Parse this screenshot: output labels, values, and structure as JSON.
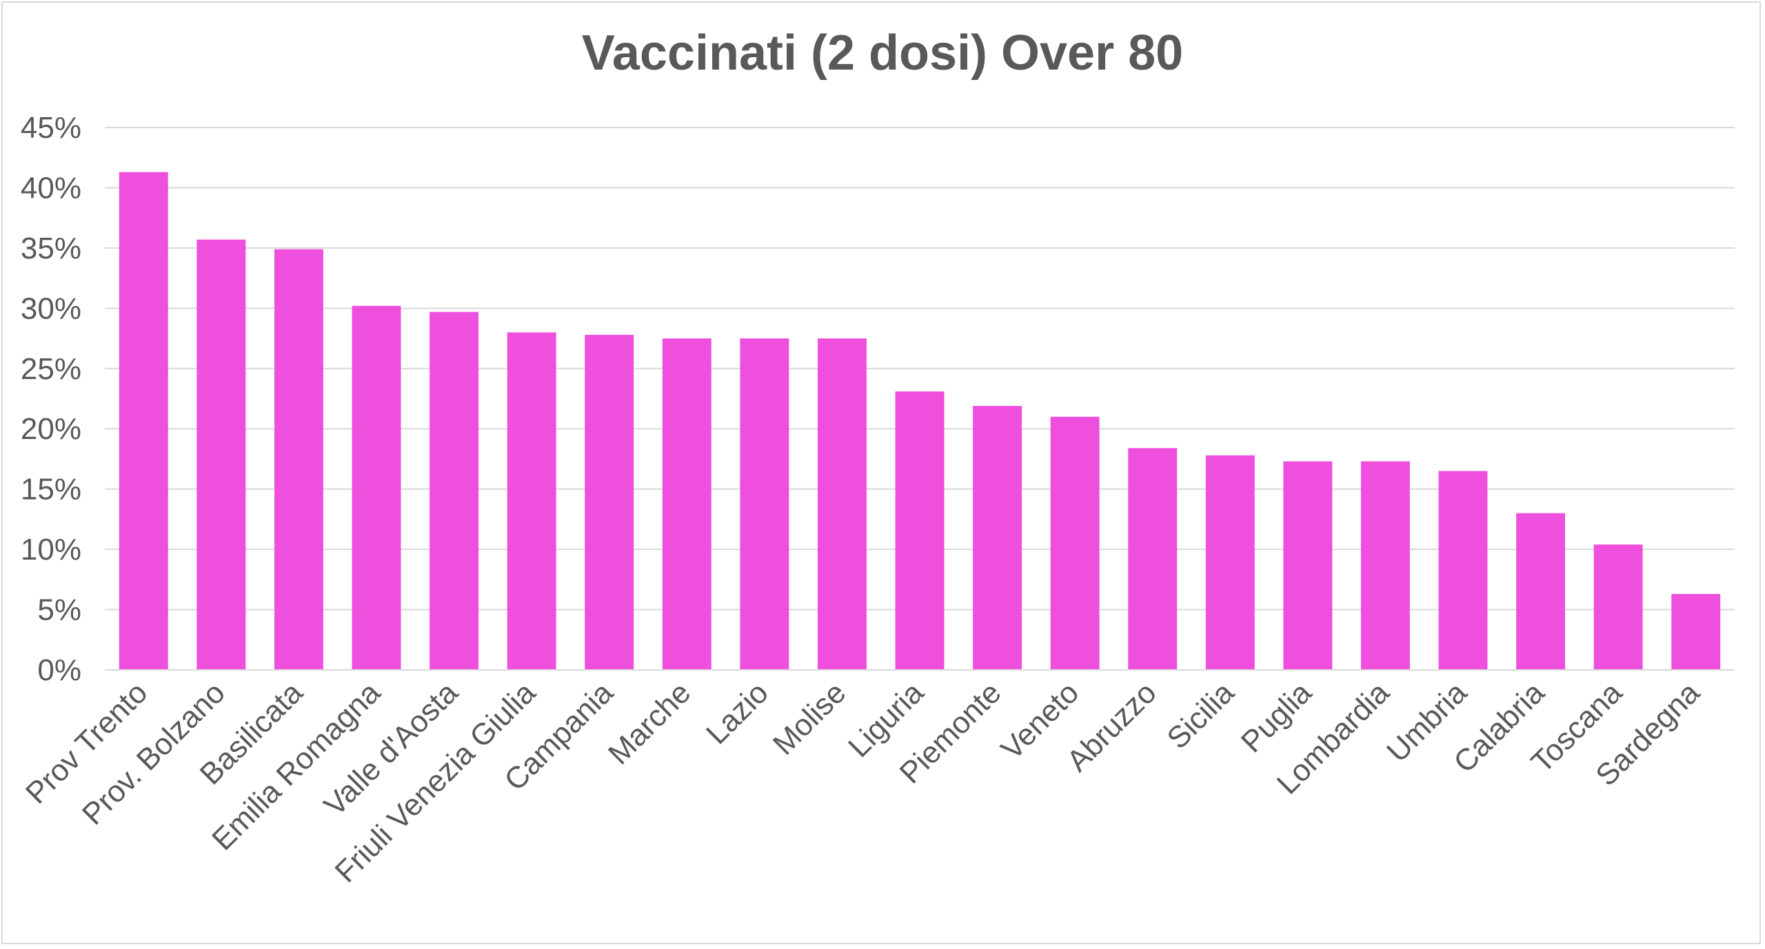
{
  "chart_data": {
    "type": "bar",
    "title": "Vaccinati (2 dosi) Over 80",
    "xlabel": "",
    "ylabel": "",
    "ylim": [
      0,
      0.45
    ],
    "yticks": [
      0,
      0.05,
      0.1,
      0.15,
      0.2,
      0.25,
      0.3,
      0.35,
      0.4,
      0.45
    ],
    "ytick_labels": [
      "0%",
      "5%",
      "10%",
      "15%",
      "20%",
      "25%",
      "30%",
      "35%",
      "40%",
      "45%"
    ],
    "grid": true,
    "legend": "none",
    "bar_color": "#ee4fdd",
    "grid_color": "#d9d9d9",
    "categories": [
      "Prov Trento",
      "Prov. Bolzano",
      "Basilicata",
      "Emilia Romagna",
      "Valle d'Aosta",
      "Friuli Venezia Giulia",
      "Campania",
      "Marche",
      "Lazio",
      "Molise",
      "Liguria",
      "Piemonte",
      "Veneto",
      "Abruzzo",
      "Sicilia",
      "Puglia",
      "Lombardia",
      "Umbria",
      "Calabria",
      "Toscana",
      "Sardegna"
    ],
    "values": [
      0.413,
      0.357,
      0.349,
      0.302,
      0.297,
      0.28,
      0.278,
      0.275,
      0.275,
      0.275,
      0.231,
      0.219,
      0.21,
      0.184,
      0.178,
      0.173,
      0.173,
      0.165,
      0.13,
      0.104,
      0.063
    ]
  }
}
